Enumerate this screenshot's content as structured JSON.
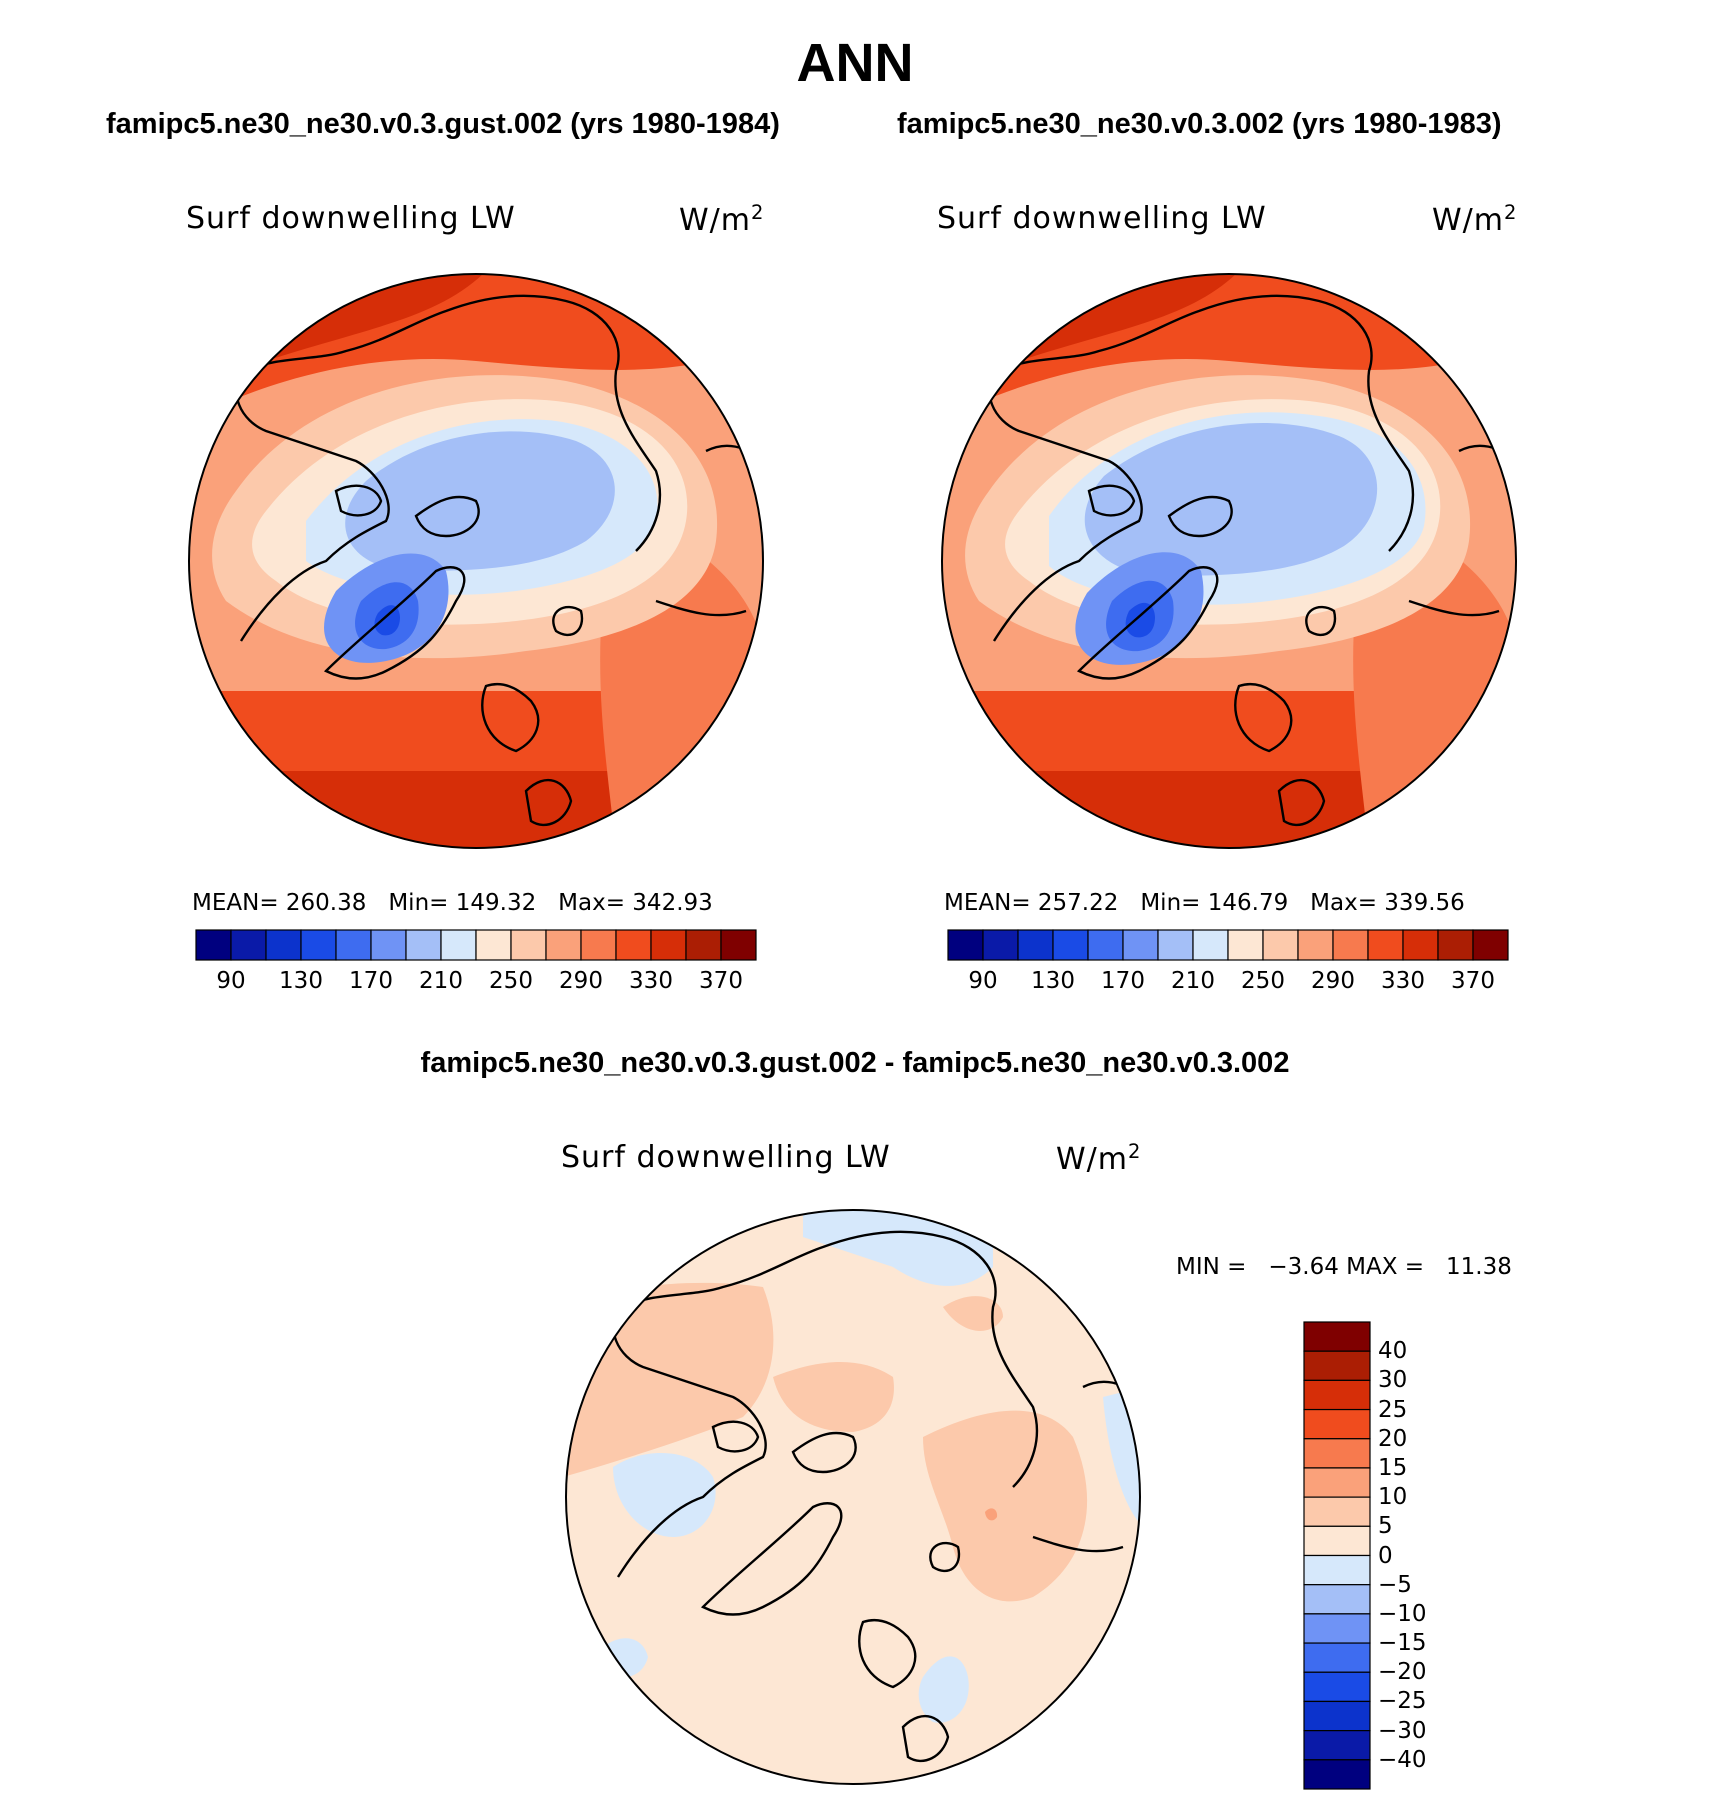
{
  "figure": {
    "season": "ANN",
    "case_a_title": "famipc5.ne30_ne30.v0.3.gust.002 (yrs 1980-1984)",
    "case_b_title": "famipc5.ne30_ne30.v0.3.002 (yrs 1980-1983)",
    "diff_title": "famipc5.ne30_ne30.v0.3.gust.002 - famipc5.ne30_ne30.v0.3.002"
  },
  "panels": {
    "a": {
      "variable": "Surf downwelling LW",
      "units_base": "W/m",
      "units_exp": "2",
      "stats": {
        "mean_label": "MEAN=",
        "mean": "260.38",
        "min_label": "Min=",
        "min": "149.32",
        "max_label": "Max=",
        "max": "342.93"
      }
    },
    "b": {
      "variable": "Surf downwelling LW",
      "units_base": "W/m",
      "units_exp": "2",
      "stats": {
        "mean_label": "MEAN=",
        "mean": "257.22",
        "min_label": "Min=",
        "min": "146.79",
        "max_label": "Max=",
        "max": "339.56"
      }
    },
    "diff": {
      "variable": "Surf downwelling LW",
      "units_base": "W/m",
      "units_exp": "2",
      "minmax": {
        "min_label": "MIN =",
        "min": "−3.64",
        "max_label": "MAX =",
        "max": "11.38"
      }
    }
  },
  "chart_data": [
    {
      "type": "heatmap",
      "projection": "north polar stereographic",
      "title": "famipc5.ne30_ne30.v0.3.gust.002 (yrs 1980-1984)",
      "variable": "Surf downwelling LW",
      "units": "W/m2",
      "stats": {
        "mean": 260.38,
        "min": 149.32,
        "max": 342.93
      },
      "contour_levels": [
        90,
        110,
        130,
        150,
        170,
        190,
        210,
        230,
        250,
        270,
        290,
        310,
        330,
        350,
        370
      ],
      "colorbar_tick_labels": [
        "90",
        "130",
        "170",
        "210",
        "250",
        "290",
        "330",
        "370"
      ],
      "colors": [
        "#00007f",
        "#0a1aa8",
        "#0c33cc",
        "#1a4be6",
        "#3e6cf0",
        "#6f93f5",
        "#a4bff7",
        "#d6e8fb",
        "#fde7d4",
        "#fcc9ab",
        "#faa17a",
        "#f77a4e",
        "#f04c1e",
        "#d62e08",
        "#ab1e04",
        "#7f0000"
      ]
    },
    {
      "type": "heatmap",
      "projection": "north polar stereographic",
      "title": "famipc5.ne30_ne30.v0.3.002 (yrs 1980-1983)",
      "variable": "Surf downwelling LW",
      "units": "W/m2",
      "stats": {
        "mean": 257.22,
        "min": 146.79,
        "max": 339.56
      },
      "contour_levels": [
        90,
        110,
        130,
        150,
        170,
        190,
        210,
        230,
        250,
        270,
        290,
        310,
        330,
        350,
        370
      ],
      "colorbar_tick_labels": [
        "90",
        "130",
        "170",
        "210",
        "250",
        "290",
        "330",
        "370"
      ],
      "colors": [
        "#00007f",
        "#0a1aa8",
        "#0c33cc",
        "#1a4be6",
        "#3e6cf0",
        "#6f93f5",
        "#a4bff7",
        "#d6e8fb",
        "#fde7d4",
        "#fcc9ab",
        "#faa17a",
        "#f77a4e",
        "#f04c1e",
        "#d62e08",
        "#ab1e04",
        "#7f0000"
      ]
    },
    {
      "type": "heatmap",
      "projection": "north polar stereographic",
      "title": "famipc5.ne30_ne30.v0.3.gust.002 - famipc5.ne30_ne30.v0.3.002",
      "variable": "Surf downwelling LW",
      "units": "W/m2",
      "stats": {
        "min": -3.64,
        "max": 11.38
      },
      "contour_levels": [
        -40,
        -30,
        -25,
        -20,
        -15,
        -10,
        -5,
        0,
        5,
        10,
        15,
        20,
        25,
        30,
        40
      ],
      "colorbar_tick_labels": [
        "40",
        "30",
        "25",
        "20",
        "15",
        "10",
        "5",
        "0",
        "−5",
        "−10",
        "−15",
        "−20",
        "−25",
        "−30",
        "−40"
      ],
      "colors_top_to_bottom": [
        "#7f0000",
        "#ab1e04",
        "#d62e08",
        "#f04c1e",
        "#f77a4e",
        "#faa17a",
        "#fcc9ab",
        "#fde7d4",
        "#d6e8fb",
        "#a4bff7",
        "#6f93f5",
        "#3e6cf0",
        "#1a4be6",
        "#0c33cc",
        "#0a1aa8",
        "#00007f"
      ]
    }
  ]
}
